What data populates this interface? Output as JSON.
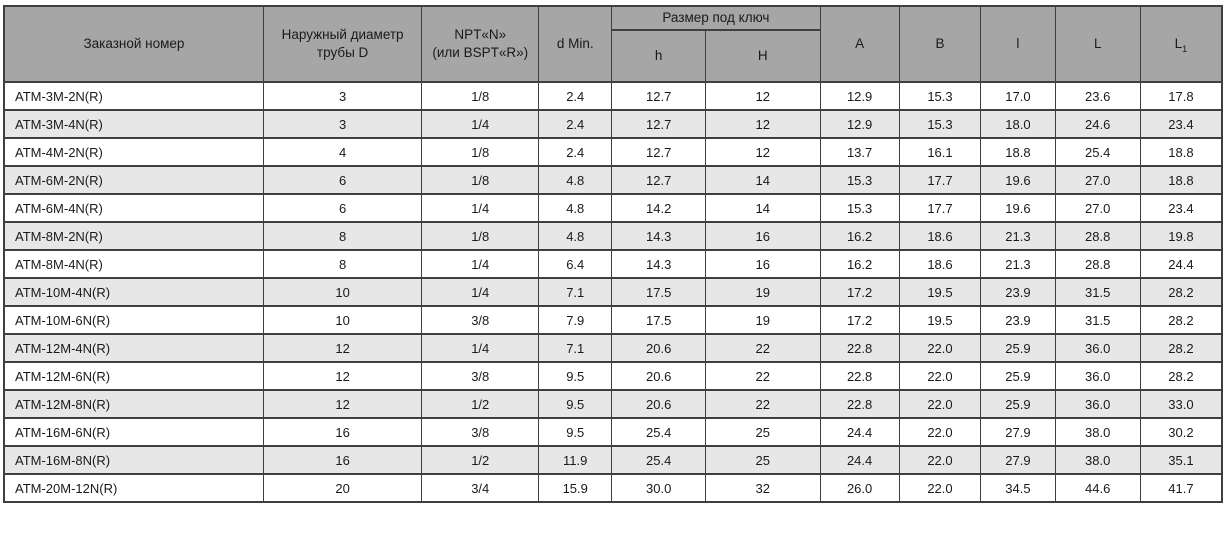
{
  "table": {
    "header": {
      "order_number": "Заказной номер",
      "outer_diameter": [
        "Наружный диаметр",
        "трубы D"
      ],
      "thread": [
        "NPT«N»",
        "(или BSPT«R»)"
      ],
      "d_min": "d Min.",
      "wrench_group": "Размер под ключ",
      "h": "h",
      "H": "H",
      "A": "A",
      "B": "B",
      "l": "l",
      "L": "L",
      "L1": {
        "base": "L",
        "sub": "1"
      }
    },
    "rows": [
      [
        "ATM-3M-2N(R)",
        "3",
        "1/8",
        "2.4",
        "12.7",
        "12",
        "12.9",
        "15.3",
        "17.0",
        "23.6",
        "17.8"
      ],
      [
        "ATM-3M-4N(R)",
        "3",
        "1/4",
        "2.4",
        "12.7",
        "12",
        "12.9",
        "15.3",
        "18.0",
        "24.6",
        "23.4"
      ],
      [
        "ATM-4M-2N(R)",
        "4",
        "1/8",
        "2.4",
        "12.7",
        "12",
        "13.7",
        "16.1",
        "18.8",
        "25.4",
        "18.8"
      ],
      [
        "ATM-6M-2N(R)",
        "6",
        "1/8",
        "4.8",
        "12.7",
        "14",
        "15.3",
        "17.7",
        "19.6",
        "27.0",
        "18.8"
      ],
      [
        "ATM-6M-4N(R)",
        "6",
        "1/4",
        "4.8",
        "14.2",
        "14",
        "15.3",
        "17.7",
        "19.6",
        "27.0",
        "23.4"
      ],
      [
        "ATM-8M-2N(R)",
        "8",
        "1/8",
        "4.8",
        "14.3",
        "16",
        "16.2",
        "18.6",
        "21.3",
        "28.8",
        "19.8"
      ],
      [
        "ATM-8M-4N(R)",
        "8",
        "1/4",
        "6.4",
        "14.3",
        "16",
        "16.2",
        "18.6",
        "21.3",
        "28.8",
        "24.4"
      ],
      [
        "ATM-10M-4N(R)",
        "10",
        "1/4",
        "7.1",
        "17.5",
        "19",
        "17.2",
        "19.5",
        "23.9",
        "31.5",
        "28.2"
      ],
      [
        "ATM-10M-6N(R)",
        "10",
        "3/8",
        "7.9",
        "17.5",
        "19",
        "17.2",
        "19.5",
        "23.9",
        "31.5",
        "28.2"
      ],
      [
        "ATM-12M-4N(R)",
        "12",
        "1/4",
        "7.1",
        "20.6",
        "22",
        "22.8",
        "22.0",
        "25.9",
        "36.0",
        "28.2"
      ],
      [
        "ATM-12M-6N(R)",
        "12",
        "3/8",
        "9.5",
        "20.6",
        "22",
        "22.8",
        "22.0",
        "25.9",
        "36.0",
        "28.2"
      ],
      [
        "ATM-12M-8N(R)",
        "12",
        "1/2",
        "9.5",
        "20.6",
        "22",
        "22.8",
        "22.0",
        "25.9",
        "36.0",
        "33.0"
      ],
      [
        "ATM-16M-6N(R)",
        "16",
        "3/8",
        "9.5",
        "25.4",
        "25",
        "24.4",
        "22.0",
        "27.9",
        "38.0",
        "30.2"
      ],
      [
        "ATM-16M-8N(R)",
        "16",
        "1/2",
        "11.9",
        "25.4",
        "25",
        "24.4",
        "22.0",
        "27.9",
        "38.0",
        "35.1"
      ],
      [
        "ATM-20M-12N(R)",
        "20",
        "3/4",
        "15.9",
        "30.0",
        "32",
        "26.0",
        "22.0",
        "34.5",
        "44.6",
        "41.7"
      ]
    ]
  },
  "colors": {
    "header_bg": "#a6a6a6",
    "stripe_bg": "#e7e7e7",
    "row_bg": "#ffffff",
    "border": "#3f3f3f",
    "text": "#1a1a1a"
  }
}
